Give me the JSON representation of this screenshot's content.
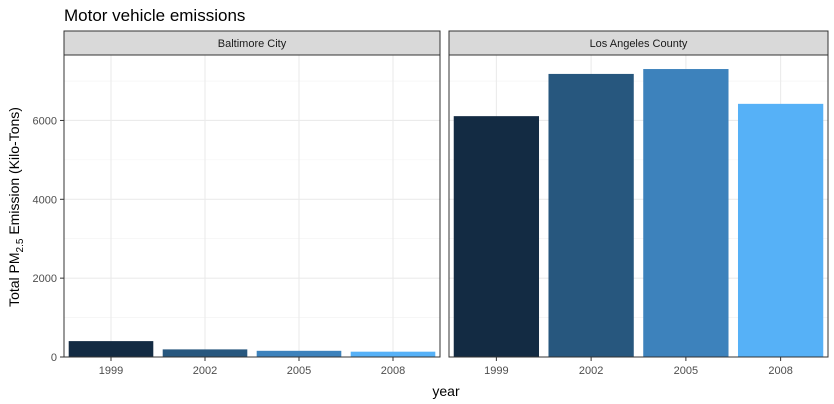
{
  "chart_data": {
    "type": "bar",
    "title": "Motor vehicle emissions",
    "xlabel": "year",
    "ylabel": {
      "prefix": "Total PM",
      "subscript": "2.5",
      "suffix": " Emission (Kilo-Tons)"
    },
    "categories": [
      "1999",
      "2002",
      "2005",
      "2008"
    ],
    "ylim": [
      0,
      7660
    ],
    "yticks": [
      0,
      2000,
      4000,
      6000
    ],
    "grid": true,
    "legend": "none",
    "colors": [
      "#132b43",
      "#27577e",
      "#3d82bc",
      "#56b1f7"
    ],
    "panels": [
      {
        "name": "Baltimore City",
        "values": [
          403,
          193,
          157,
          135
        ]
      },
      {
        "name": "Los Angeles County",
        "values": [
          6109,
          7180,
          7304,
          6421
        ]
      }
    ]
  }
}
